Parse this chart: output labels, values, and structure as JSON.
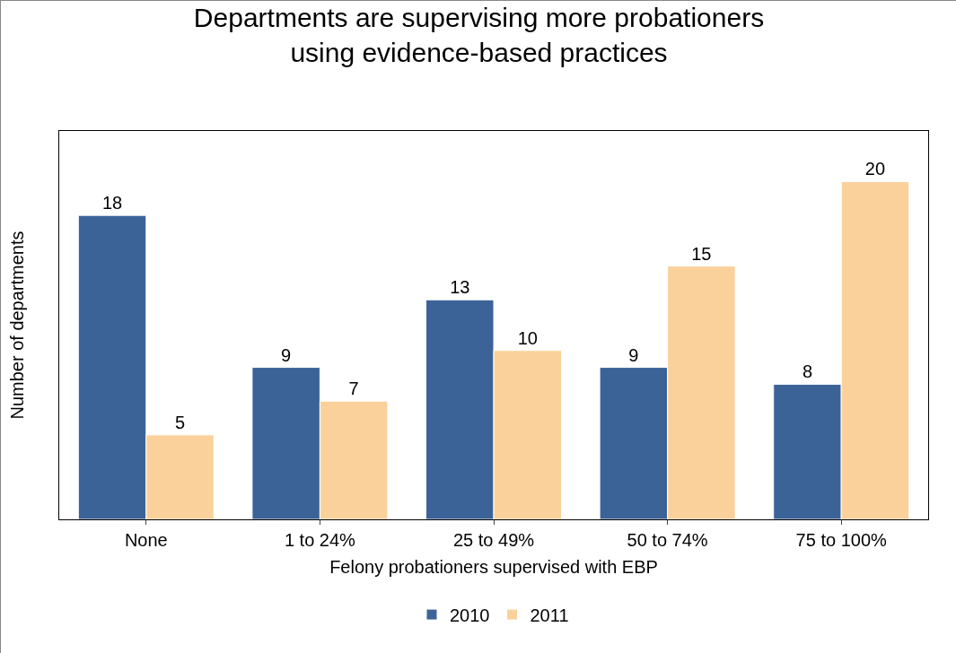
{
  "chart_data": {
    "type": "bar",
    "title": "Departments are supervising more probationers\nusing evidence-based practices",
    "xlabel": "Felony probationers supervised with EBP",
    "ylabel": "Number of departments",
    "categories": [
      "None",
      "1 to 24%",
      "25 to 49%",
      "50 to 74%",
      "75 to 100%"
    ],
    "series": [
      {
        "name": "2010",
        "color": "#3c6398",
        "values": [
          18,
          9,
          13,
          9,
          8
        ]
      },
      {
        "name": "2011",
        "color": "#fad19b",
        "values": [
          5,
          7,
          10,
          15,
          20
        ]
      }
    ],
    "data_labels": true,
    "legend": "bottom",
    "grid": false
  }
}
